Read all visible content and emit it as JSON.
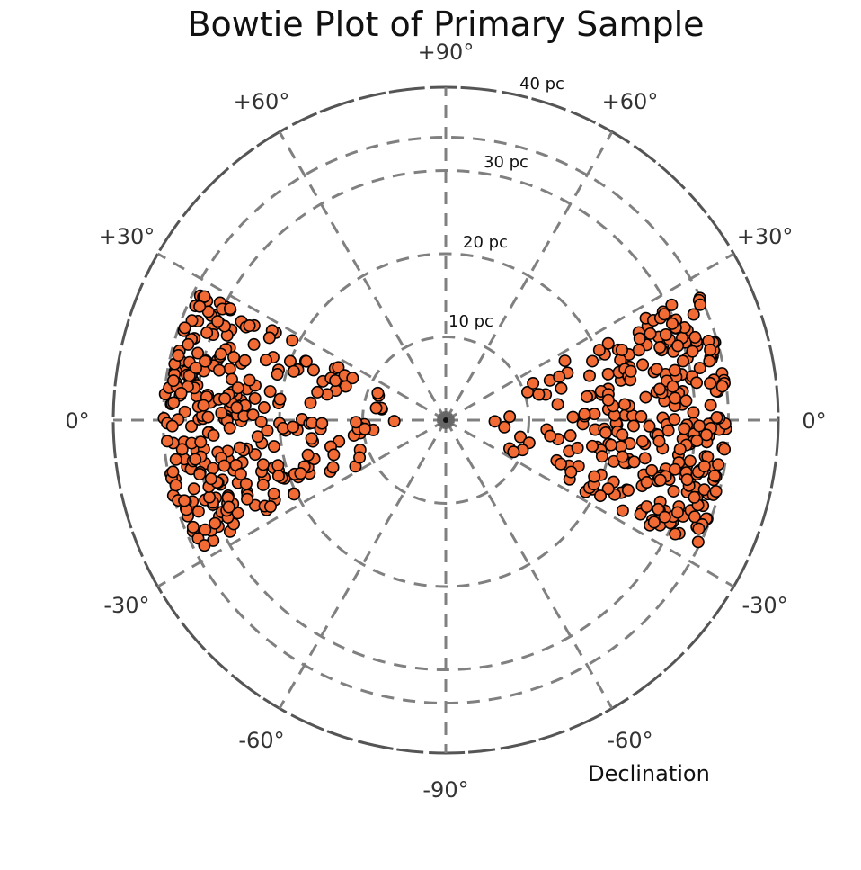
{
  "chart_data": {
    "type": "scatter",
    "subtype": "polar-bowtie",
    "title": "Bowtie Plot of Primary Sample",
    "xlabel": "Declination",
    "ylabel": "",
    "angle_unit": "degrees",
    "radial_unit": "pc",
    "rlim": [
      0,
      40
    ],
    "angular_tick_labels": [
      {
        "angle": 90,
        "label": "+90°"
      },
      {
        "angle": 60,
        "label": "+60°"
      },
      {
        "angle": 30,
        "label": "+30°"
      },
      {
        "angle": 0,
        "label": "0°"
      },
      {
        "angle": -30,
        "label": "-30°"
      },
      {
        "angle": -60,
        "label": "-60°"
      },
      {
        "angle": -90,
        "label": "-90°"
      },
      {
        "angle": 120,
        "label": "+60°"
      },
      {
        "angle": 150,
        "label": "+30°"
      },
      {
        "angle": 180,
        "label": "0°"
      },
      {
        "angle": 210,
        "label": "-30°"
      },
      {
        "angle": 240,
        "label": "-60°"
      }
    ],
    "radial_rings": [
      {
        "r": 10,
        "label": "10 pc"
      },
      {
        "r": 20,
        "label": "20 pc"
      },
      {
        "r": 30,
        "label": "30 pc"
      },
      {
        "r": 34,
        "label": ""
      },
      {
        "r": 40,
        "label": "40 pc"
      }
    ],
    "grid": true,
    "legend": null,
    "marker_color": "#F26B35",
    "marker_edge": "#000000",
    "series": [
      {
        "name": "Primary Sample",
        "note": "points as [polar_angle_deg, distance_pc]; right lobe near 0°, left lobe near 180°; count and positions approximate",
        "points": []
      }
    ],
    "point_count_approx": 620
  },
  "labels": {
    "title": "Bowtie Plot of Primary Sample",
    "declination": "Declination",
    "ring_10": "10 pc",
    "ring_20": "20 pc",
    "ring_30": "30 pc",
    "ring_40": "40 pc"
  }
}
